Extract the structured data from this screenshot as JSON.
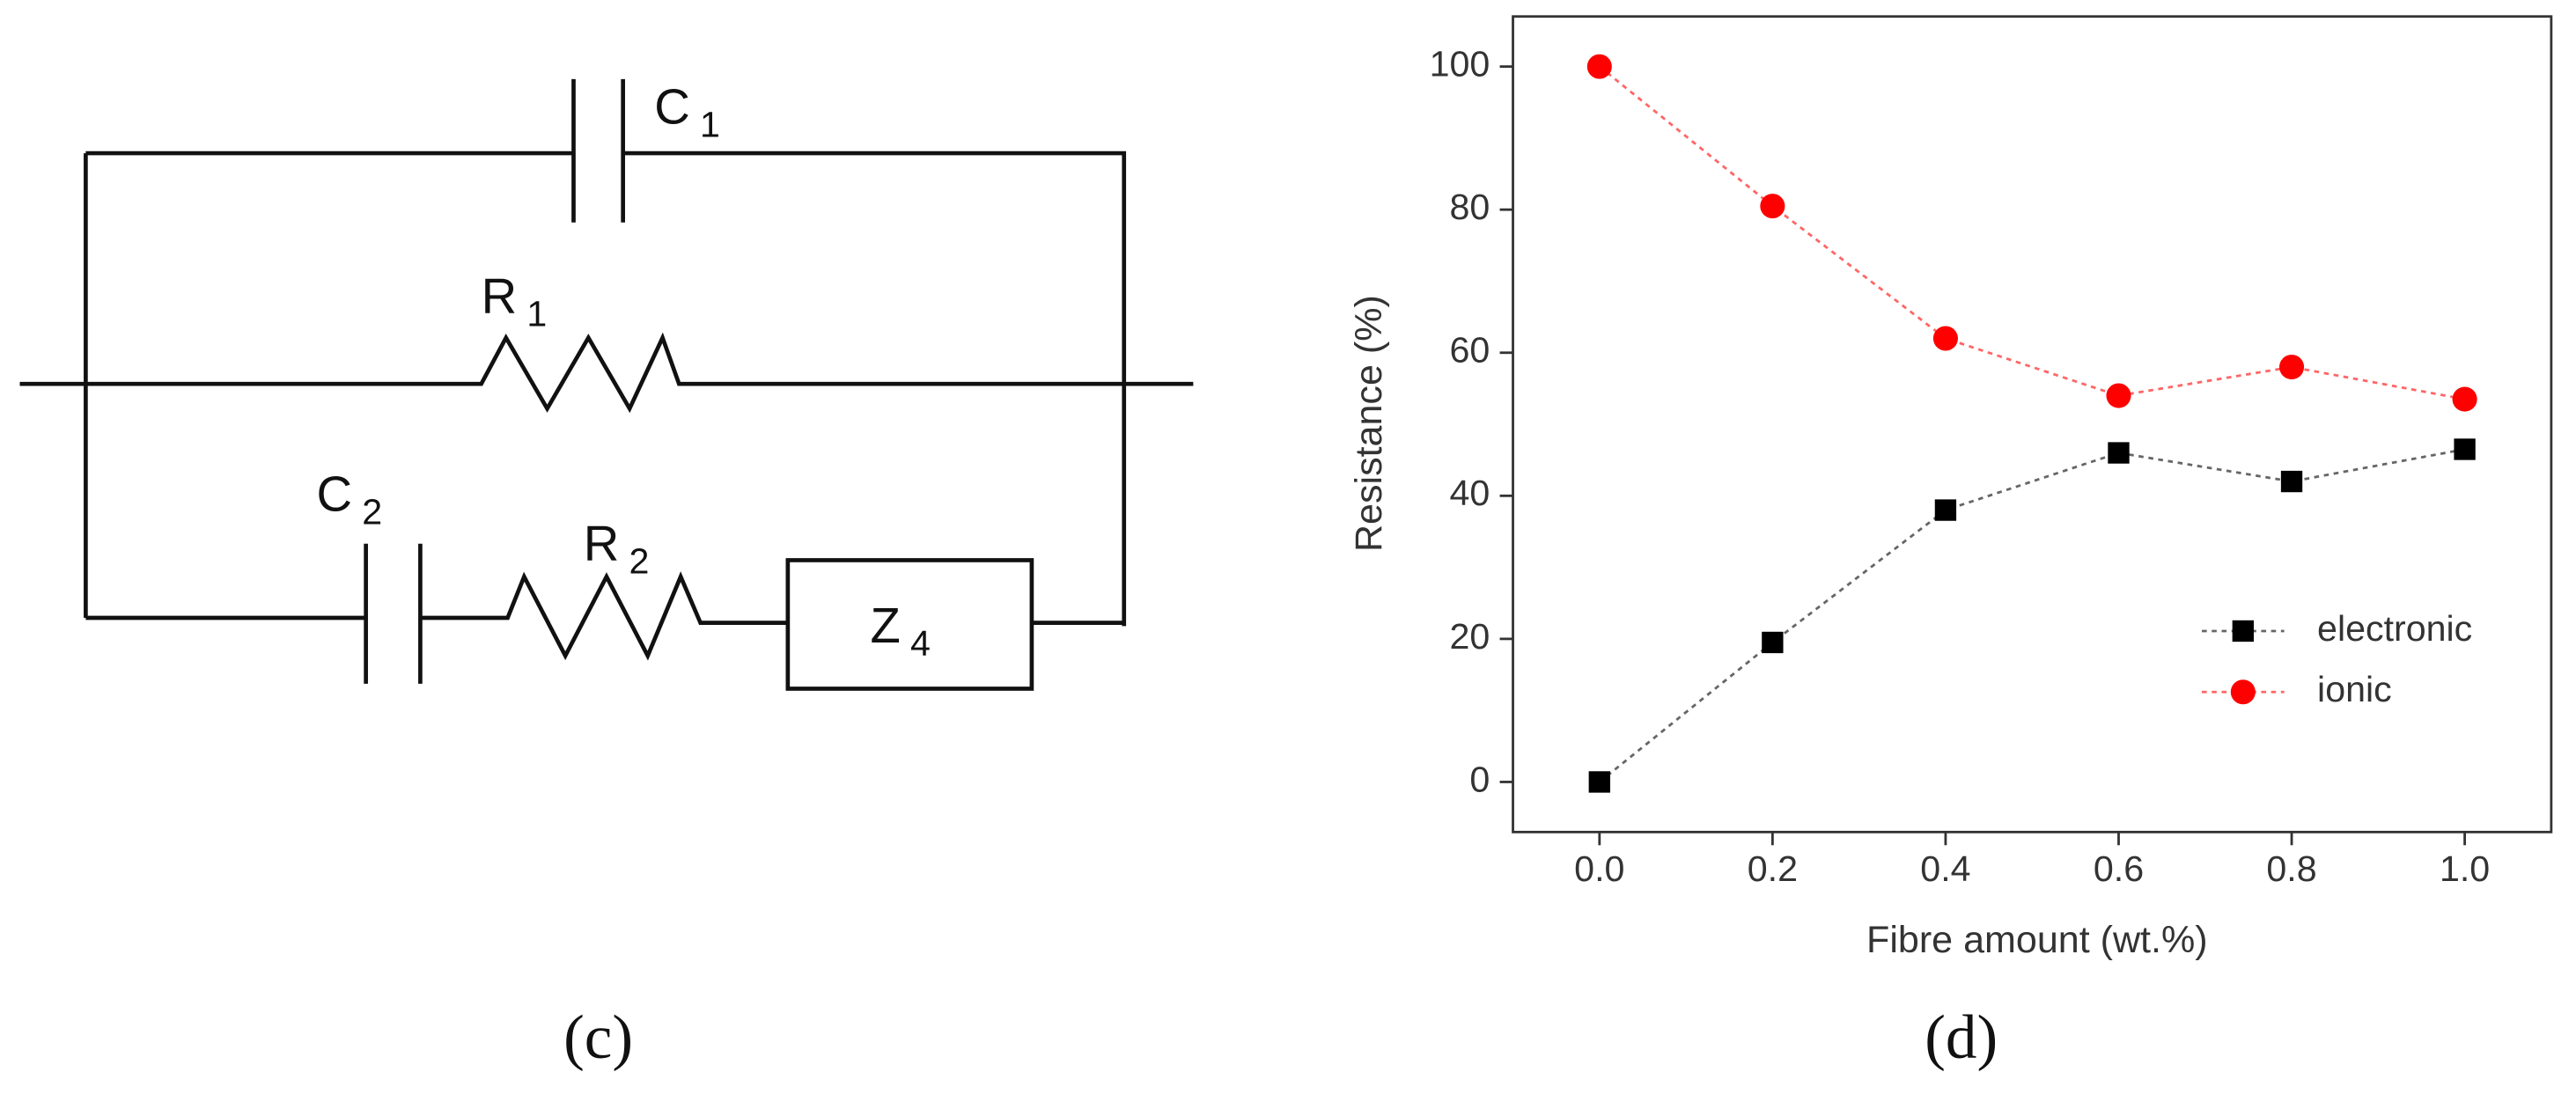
{
  "diagram": {
    "components": [
      {
        "symbol": "C",
        "subscript": "1"
      },
      {
        "symbol": "R",
        "subscript": "1"
      },
      {
        "symbol": "C",
        "subscript": "2"
      },
      {
        "symbol": "R",
        "subscript": "2"
      },
      {
        "symbol": "Z",
        "subscript": "4"
      }
    ],
    "panel_label": "(c)"
  },
  "chart_data": {
    "type": "line",
    "panel_label": "(d)",
    "x_label": "Fibre amount (wt.%)",
    "y_label": "Resistance (%)",
    "x": [
      0,
      0.2,
      0.4,
      0.6,
      0.8,
      1.0
    ],
    "series": [
      {
        "name": "electronic",
        "color": "#000000",
        "marker": "square",
        "values": [
          0,
          19.5,
          38,
          46,
          42,
          46.5
        ]
      },
      {
        "name": "ionic",
        "color": "#ff0000",
        "marker": "circle",
        "values": [
          100,
          80.5,
          62,
          54,
          58,
          53.5
        ]
      }
    ],
    "xlim": [
      -0.1,
      1.1
    ],
    "ylim": [
      -7,
      107
    ],
    "xticks": [
      {
        "value": 0,
        "label": "0.0"
      },
      0.2,
      0.4,
      0.6,
      0.8,
      {
        "value": 1,
        "label": "1.0"
      }
    ],
    "yticks": [
      0,
      20,
      40,
      60,
      80,
      100
    ],
    "legend": "lower right",
    "line_style": "dotted"
  }
}
